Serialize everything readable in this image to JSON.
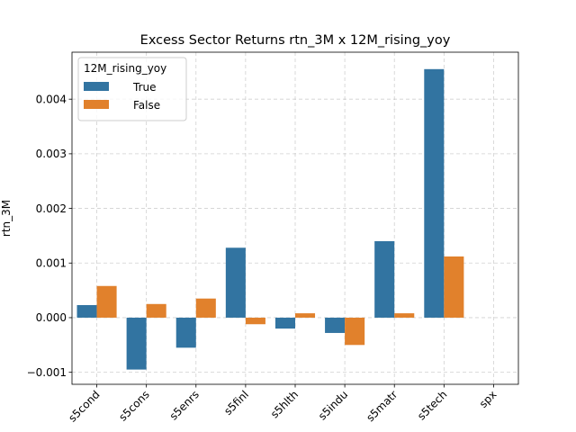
{
  "chart_data": {
    "type": "bar",
    "title": "Excess Sector Returns rtn_3M x 12M_rising_yoy",
    "xlabel": "",
    "ylabel": "rtn_3M",
    "categories": [
      "s5cond",
      "s5cons",
      "s5enrs",
      "s5finl",
      "s5hlth",
      "s5indu",
      "s5matr",
      "s5tech",
      "spx"
    ],
    "series": [
      {
        "name": "True",
        "color": "#3274a1",
        "values": [
          0.00023,
          -0.00095,
          -0.00055,
          0.00128,
          -0.0002,
          -0.00028,
          0.0014,
          0.00455,
          null
        ]
      },
      {
        "name": "False",
        "color": "#e1812c",
        "values": [
          0.00058,
          0.00025,
          0.00035,
          -0.00012,
          8e-05,
          -0.0005,
          8e-05,
          0.00112,
          null
        ]
      }
    ],
    "ylim": [
      -0.00122,
      0.00486
    ],
    "yticks": [
      -0.001,
      0.0,
      0.001,
      0.002,
      0.003,
      0.004
    ],
    "ytick_labels": [
      "−0.001",
      "0.000",
      "0.001",
      "0.002",
      "0.003",
      "0.004"
    ],
    "legend": {
      "title": "12M_rising_yoy",
      "placement": "top-left"
    },
    "grid": true
  }
}
